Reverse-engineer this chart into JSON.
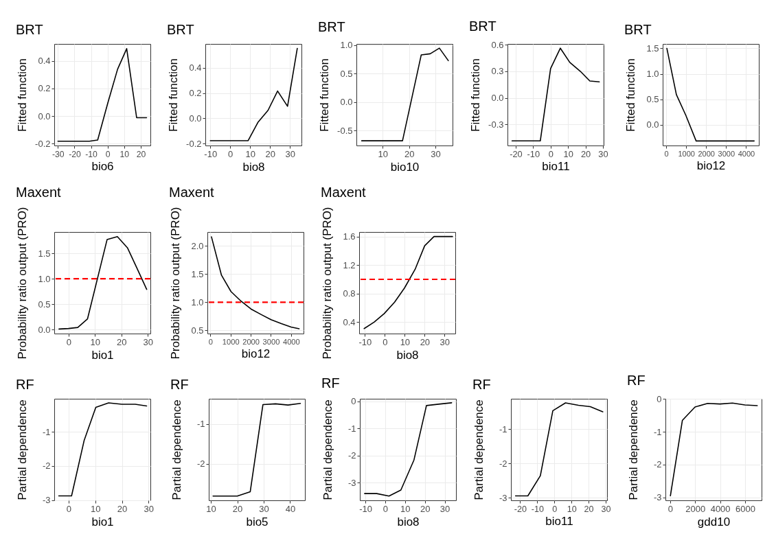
{
  "chart_data": [
    {
      "type": "line",
      "title": "BRT",
      "xlabel": "bio6",
      "ylabel": "Fitted function",
      "x": [
        -30,
        -11,
        -6,
        0,
        6,
        11.5,
        17.5,
        23.5
      ],
      "series": [
        {
          "color": "#000000",
          "values": [
            -0.183,
            -0.183,
            -0.174,
            0.09,
            0.34,
            0.49,
            -0.012,
            -0.012
          ]
        }
      ],
      "xlim": [
        -32.2,
        25.8
      ],
      "xticks": [
        -30,
        -20,
        -10,
        0,
        10,
        20
      ],
      "ylim": [
        -0.214,
        0.524
      ],
      "yticks": [
        -0.2,
        {
          "value": 0,
          "label": "0.0"
        },
        0.2,
        0.4
      ],
      "grid": true,
      "line_style": "solid",
      "marker": "none"
    },
    {
      "type": "line",
      "title": "BRT",
      "xlabel": "bio8",
      "ylabel": "Fitted function",
      "x": [
        -10,
        9,
        14,
        19,
        23.8,
        28.8,
        33.7
      ],
      "series": [
        {
          "color": "#000000",
          "values": [
            -0.177,
            -0.177,
            -0.03,
            0.063,
            0.216,
            0.095,
            0.553
          ]
        }
      ],
      "xlim": [
        -12.5,
        35.8
      ],
      "xticks": [
        -10,
        0,
        10,
        20,
        30
      ],
      "ylim": [
        -0.215,
        0.588
      ],
      "yticks": [
        -0.2,
        {
          "value": 0,
          "label": "0.0"
        },
        0.2,
        0.4
      ],
      "grid": true,
      "line_style": "solid",
      "marker": "none"
    },
    {
      "type": "line",
      "title": "BRT",
      "xlabel": "bio10",
      "ylabel": "Fitted function",
      "x": [
        2,
        17.5,
        24.6,
        28,
        31.5,
        34.9
      ],
      "series": [
        {
          "color": "#000000",
          "values": [
            -0.68,
            -0.68,
            0.83,
            0.85,
            0.95,
            0.73
          ]
        }
      ],
      "xlim": [
        0,
        36.5
      ],
      "xticks": [
        10,
        20,
        30
      ],
      "ylim": [
        -0.763,
        1.024
      ],
      "yticks": [
        -0.5,
        {
          "value": 0,
          "label": "0.0"
        },
        0.5,
        {
          "value": 1,
          "label": "1.0"
        }
      ],
      "grid": true,
      "line_style": "solid",
      "marker": "none"
    },
    {
      "type": "line",
      "title": "BRT",
      "xlabel": "bio11",
      "ylabel": "Fitted function",
      "x": [
        -22.1,
        -5.9,
        0,
        5.6,
        11,
        17,
        22.5,
        27.9
      ],
      "series": [
        {
          "color": "#000000",
          "values": [
            -0.485,
            -0.485,
            0.33,
            0.56,
            0.4,
            0.3,
            0.19,
            0.18
          ]
        }
      ],
      "xlim": [
        -24.7,
        30.4
      ],
      "xticks": [
        -20,
        -10,
        0,
        10,
        20,
        30
      ],
      "ylim": [
        -0.537,
        0.608
      ],
      "yticks": [
        -0.3,
        {
          "value": 0,
          "label": "0.0"
        },
        0.3,
        0.6
      ],
      "grid": true,
      "line_style": "solid",
      "marker": "none"
    },
    {
      "type": "line",
      "title": "BRT",
      "xlabel": "bio12",
      "ylabel": "Fitted function",
      "x": [
        35,
        512,
        988,
        1500,
        4407
      ],
      "series": [
        {
          "color": "#000000",
          "values": [
            1.5,
            0.59,
            0.18,
            -0.32,
            -0.32
          ]
        }
      ],
      "xlim": [
        -174,
        4640
      ],
      "xticks": [
        0,
        1000,
        2000,
        3000,
        4000
      ],
      "ylim": [
        -0.41,
        1.587
      ],
      "yticks": [
        {
          "value": 0,
          "label": "0.0"
        },
        0.5,
        {
          "value": 1,
          "label": "1.0"
        },
        1.5
      ],
      "grid": true,
      "line_style": "solid",
      "marker": "none"
    },
    {
      "type": "line",
      "title": "Maxent",
      "xlabel": "bio1",
      "ylabel": "Probability ratio output (PRO)",
      "x": [
        -3.6,
        0,
        3.5,
        7.2,
        14.6,
        18.5,
        22.3,
        25.9,
        29.6
      ],
      "series": [
        {
          "color": "#000000",
          "values": [
            0.01,
            0.02,
            0.04,
            0.21,
            1.77,
            1.83,
            1.61,
            1.21,
            0.79
          ]
        }
      ],
      "xlim": [
        -5.4,
        31
      ],
      "xticks": [
        0,
        10,
        20,
        30
      ],
      "ylim": [
        -0.08,
        1.92
      ],
      "yticks": [
        {
          "value": 0,
          "label": "0.0"
        },
        0.5,
        {
          "value": 1,
          "label": "1.0"
        },
        1.5
      ],
      "ref_lines": [
        {
          "axis": "y",
          "value": 1,
          "color": "#ff0000",
          "line_style": "dashed"
        }
      ],
      "grid": true,
      "line_style": "solid",
      "marker": "none"
    },
    {
      "type": "line",
      "title": "Maxent",
      "xlabel": "bio12",
      "ylabel": "Probability ratio output (PRO)",
      "x": [
        54,
        550,
        1020,
        1517,
        2013,
        2523,
        3007,
        3517,
        4000,
        4400
      ],
      "series": [
        {
          "color": "#000000",
          "values": [
            2.16,
            1.48,
            1.19,
            1.02,
            0.88,
            0.78,
            0.69,
            0.62,
            0.56,
            0.53
          ]
        }
      ],
      "xlim": [
        -148,
        4617
      ],
      "xticks": [
        0,
        1000,
        2000,
        3000,
        4000
      ],
      "ylim": [
        0.444,
        2.247
      ],
      "yticks": [
        0.5,
        {
          "value": 1,
          "label": "1.0"
        },
        1.5,
        {
          "value": 2,
          "label": "2.0"
        }
      ],
      "ref_lines": [
        {
          "axis": "y",
          "value": 1,
          "color": "#ff0000",
          "line_style": "dashed"
        }
      ],
      "grid": true,
      "line_style": "solid",
      "marker": "none"
    },
    {
      "type": "line",
      "title": "Maxent",
      "xlabel": "bio8",
      "ylabel": "Probability ratio output (PRO)",
      "x": [
        -10.4,
        -5.4,
        -0.3,
        4.9,
        9.9,
        15.2,
        20,
        24.7,
        34
      ],
      "series": [
        {
          "color": "#000000",
          "values": [
            0.31,
            0.4,
            0.52,
            0.68,
            0.88,
            1.14,
            1.47,
            1.6,
            1.6
          ]
        }
      ],
      "xlim": [
        -12.9,
        35.4
      ],
      "xticks": [
        -10,
        0,
        10,
        20,
        30
      ],
      "ylim": [
        0.24,
        1.664
      ],
      "yticks": [
        0.4,
        0.8,
        1.2,
        1.6
      ],
      "ref_lines": [
        {
          "axis": "y",
          "value": 1,
          "color": "#ff0000",
          "line_style": "dashed"
        }
      ],
      "grid": true,
      "line_style": "solid",
      "marker": "none"
    },
    {
      "type": "line",
      "title": "RF",
      "xlabel": "bio1",
      "ylabel": "Partial dependence",
      "x": [
        -3.7,
        1.1,
        5.8,
        10.2,
        15,
        20,
        25,
        29.3
      ],
      "series": [
        {
          "color": "#000000",
          "values": [
            -2.88,
            -2.88,
            -1.26,
            -0.28,
            -0.15,
            -0.19,
            -0.19,
            -0.24
          ]
        }
      ],
      "xlim": [
        -5.4,
        30.7
      ],
      "xticks": [
        0,
        10,
        20,
        30
      ],
      "ylim": [
        -3.01,
        -0.03
      ],
      "yticks": [
        -3,
        -2,
        -1
      ],
      "grid": true,
      "line_style": "solid",
      "marker": "none"
    },
    {
      "type": "line",
      "title": "RF",
      "xlabel": "bio5",
      "ylabel": "Partial dependence",
      "x": [
        10.8,
        20,
        24.9,
        29.7,
        34.5,
        39.2,
        43.9
      ],
      "series": [
        {
          "color": "#000000",
          "values": [
            -2.81,
            -2.81,
            -2.7,
            -0.51,
            -0.49,
            -0.52,
            -0.48
          ]
        }
      ],
      "xlim": [
        9.2,
        45.6
      ],
      "xticks": [
        10,
        20,
        30,
        40
      ],
      "ylim": [
        -2.917,
        -0.363
      ],
      "yticks": [
        -2,
        -1
      ],
      "grid": true,
      "line_style": "solid",
      "marker": "none"
    },
    {
      "type": "line",
      "title": "RF",
      "xlabel": "bio8",
      "ylabel": "Partial dependence",
      "x": [
        -10.4,
        -4.3,
        1.9,
        7.9,
        14.5,
        20.8,
        26.9,
        33.5
      ],
      "series": [
        {
          "color": "#000000",
          "values": [
            -3.4,
            -3.4,
            -3.49,
            -3.27,
            -2.16,
            -0.15,
            -0.1,
            -0.05
          ]
        }
      ],
      "xlim": [
        -12.8,
        35.7
      ],
      "xticks": [
        -10,
        0,
        10,
        20,
        30
      ],
      "ylim": [
        -3.65,
        0.1
      ],
      "yticks": [
        -3,
        -2,
        -1,
        0
      ],
      "grid": true,
      "line_style": "solid",
      "marker": "none"
    },
    {
      "type": "line",
      "title": "RF",
      "xlabel": "bio11",
      "ylabel": "Partial dependence",
      "x": [
        -22.7,
        -15.5,
        -8.2,
        -0.9,
        6.5,
        14.1,
        21,
        28.3
      ],
      "series": [
        {
          "color": "#000000",
          "values": [
            -2.95,
            -2.95,
            -2.36,
            -0.46,
            -0.23,
            -0.3,
            -0.34,
            -0.49
          ]
        }
      ],
      "xlim": [
        -25.4,
        30.8
      ],
      "xticks": [
        -20,
        -10,
        0,
        10,
        20,
        30
      ],
      "ylim": [
        -3.08,
        -0.11
      ],
      "yticks": [
        -3,
        -2,
        -1
      ],
      "grid": true,
      "line_style": "solid",
      "marker": "none"
    },
    {
      "type": "line",
      "title": "RF",
      "xlabel": "gdd10",
      "ylabel": "Partial dependence",
      "x": [
        18,
        976,
        1989,
        3000,
        3995,
        4990,
        5985,
        6980
      ],
      "series": [
        {
          "color": "#000000",
          "values": [
            -2.95,
            -0.65,
            -0.24,
            -0.13,
            -0.15,
            -0.12,
            -0.18,
            -0.2
          ]
        }
      ],
      "xlim": [
        -380,
        7323
      ],
      "xticks": [
        0,
        2000,
        4000,
        6000
      ],
      "ylim": [
        -3.09,
        0.01
      ],
      "yticks": [
        -3,
        -2,
        -1,
        0
      ],
      "grid": true,
      "line_style": "solid",
      "marker": "none"
    }
  ]
}
